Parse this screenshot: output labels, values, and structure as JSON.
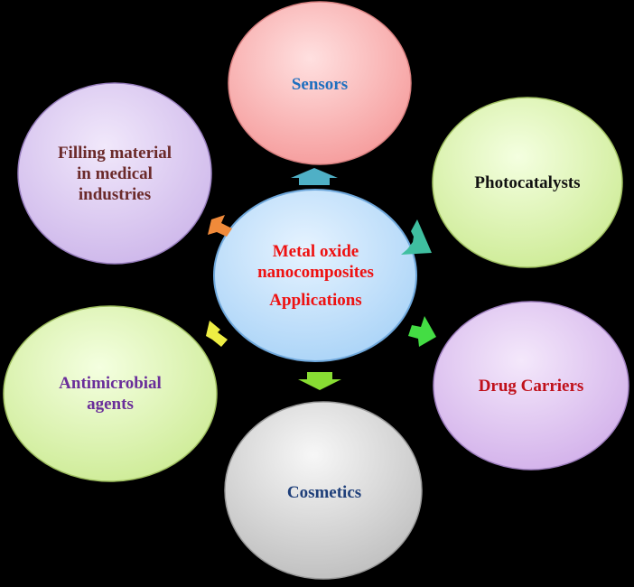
{
  "center": {
    "line1": "Metal oxide",
    "line2": "nanocomposites",
    "line3": "Applications",
    "color": "#ee1111"
  },
  "nodes": [
    {
      "id": "sensors",
      "lines": [
        "Sensors"
      ],
      "text_color": "#1f6fbf",
      "fill": "#f7a3a3"
    },
    {
      "id": "photocatalysts",
      "lines": [
        "Photocatalysts"
      ],
      "text_color": "#111111",
      "fill": "#d9f2a8"
    },
    {
      "id": "drug-carriers",
      "lines": [
        "Drug Carriers"
      ],
      "text_color": "#c0101a",
      "fill": "#d9b8ee"
    },
    {
      "id": "cosmetics",
      "lines": [
        "Cosmetics"
      ],
      "text_color": "#1f3f7a",
      "fill": "#cfcfcf"
    },
    {
      "id": "antimicrobial-agents",
      "lines": [
        "Antimicrobial",
        "agents"
      ],
      "text_color": "#6a2e9a",
      "fill": "#d9f2a8"
    },
    {
      "id": "filling-material",
      "lines": [
        "Filling material",
        "in medical",
        "industries"
      ],
      "text_color": "#6b2a2a",
      "fill": "#d9c6ee"
    }
  ],
  "arrows": [
    {
      "id": "to-sensors",
      "color": "#4fb0c6"
    },
    {
      "id": "to-photocatalysts",
      "color": "#3fbfa0"
    },
    {
      "id": "to-drug-carriers",
      "color": "#44dd44"
    },
    {
      "id": "to-cosmetics",
      "color": "#88dd33"
    },
    {
      "id": "to-antimicrobial",
      "color": "#eeee44"
    },
    {
      "id": "to-filling",
      "color": "#f08a3a"
    }
  ]
}
